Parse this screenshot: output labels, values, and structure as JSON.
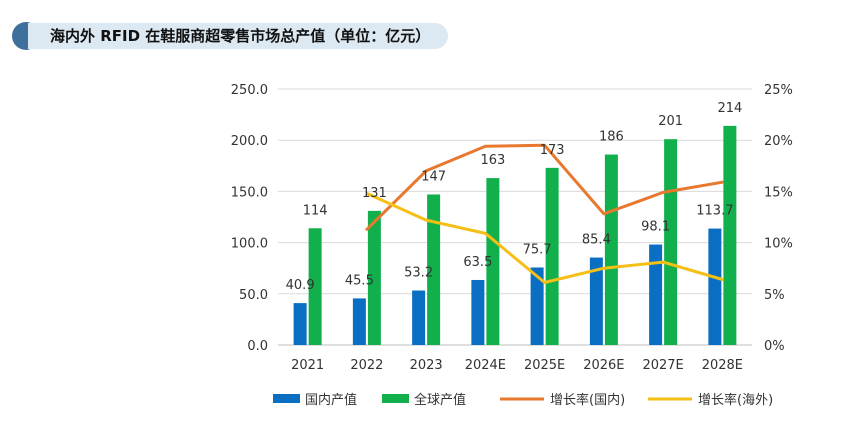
{
  "title": "海内外 RFID 在鞋服商超零售市场总产值（单位：亿元）",
  "colors": {
    "domestic": "#0a6fc2",
    "global": "#12b04c",
    "growth_domestic": "#e8782e",
    "growth_overseas": "#f5bf15",
    "title_dot": "#3f6f9c",
    "title_bg": "#dde9f2"
  },
  "chart_data": {
    "type": "bar",
    "categories": [
      "2021",
      "2022",
      "2023",
      "2024E",
      "2025E",
      "2026E",
      "2027E",
      "2028E"
    ],
    "series": [
      {
        "name": "国内产值",
        "kind": "bar",
        "axis": "left",
        "values": [
          40.9,
          45.5,
          53.2,
          63.5,
          75.7,
          85.4,
          98.1,
          113.7
        ],
        "labels": [
          "40.9",
          "45.5",
          "53.2",
          "63.5",
          "75.7",
          "85.4",
          "98.1",
          "113.7"
        ]
      },
      {
        "name": "全球产值",
        "kind": "bar",
        "axis": "left",
        "values": [
          114,
          131,
          147,
          163,
          173,
          186,
          201,
          214
        ],
        "labels": [
          "114",
          "131",
          "147",
          "163",
          "173",
          "186",
          "201",
          "214"
        ]
      },
      {
        "name": "增长率(国内)",
        "kind": "line",
        "axis": "right",
        "values": [
          null,
          11.3,
          17.0,
          19.4,
          19.5,
          12.8,
          14.9,
          15.9
        ]
      },
      {
        "name": "增长率(海外)",
        "kind": "line",
        "axis": "right",
        "values": [
          null,
          14.8,
          12.2,
          10.9,
          6.1,
          7.5,
          8.1,
          6.4
        ]
      }
    ],
    "yleft": {
      "min": 0,
      "max": 250,
      "ticks": [
        "0.0",
        "50.0",
        "100.0",
        "150.0",
        "200.0",
        "250.0"
      ]
    },
    "yright": {
      "min": 0,
      "max": 25,
      "ticks": [
        "0%",
        "5%",
        "10%",
        "15%",
        "20%",
        "25%"
      ]
    },
    "grid": true,
    "legend_position": "bottom"
  }
}
